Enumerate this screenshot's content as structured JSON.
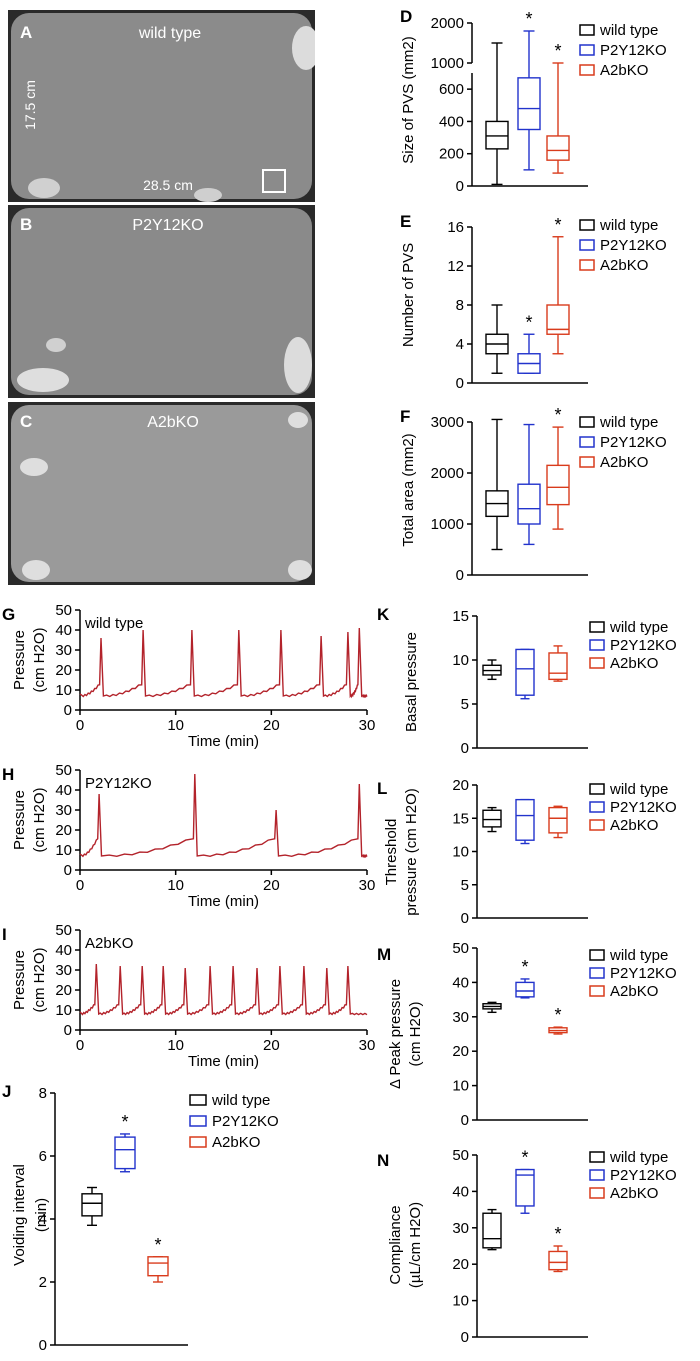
{
  "colors": {
    "wild_type": "#000000",
    "p2y12ko": "#2233cc",
    "a2bko": "#d93b1c",
    "trace": "#b3232b",
    "paper_bg": "#2a2a2a"
  },
  "photos": [
    {
      "panel": "A",
      "label": "wild type",
      "dim_h": "17.5 cm",
      "dim_w": "28.5 cm"
    },
    {
      "panel": "B",
      "label": "P2Y12KO"
    },
    {
      "panel": "C",
      "label": "A2bKO"
    }
  ],
  "legend": [
    "wild type",
    "P2Y12KO",
    "A2bKO"
  ],
  "chart_data": [
    {
      "panel": "D",
      "type": "box",
      "ylabel": "Size of PVS (mm2)",
      "broken_axis": true,
      "y_ticks": [
        "0",
        "200",
        "400",
        "600",
        "1000",
        "2000"
      ],
      "groups": [
        {
          "name": "wild type",
          "min": 10,
          "q1": 230,
          "median": 310,
          "q3": 400,
          "max": 1500,
          "sig": false
        },
        {
          "name": "P2Y12KO",
          "min": 100,
          "q1": 350,
          "median": 480,
          "q3": 670,
          "max": 1800,
          "sig": true
        },
        {
          "name": "A2bKO",
          "min": 80,
          "q1": 160,
          "median": 220,
          "q3": 310,
          "max": 1000,
          "sig": true
        }
      ]
    },
    {
      "panel": "E",
      "type": "box",
      "ylabel": "Number of PVS",
      "ylim": [
        0,
        16
      ],
      "y_ticks": [
        "0",
        "4",
        "8",
        "12",
        "16"
      ],
      "groups": [
        {
          "name": "wild type",
          "min": 1,
          "q1": 3,
          "median": 4,
          "q3": 5,
          "max": 8,
          "sig": false
        },
        {
          "name": "P2Y12KO",
          "min": 1,
          "q1": 1,
          "median": 2,
          "q3": 3,
          "max": 5,
          "sig": true
        },
        {
          "name": "A2bKO",
          "min": 3,
          "q1": 5,
          "median": 5.5,
          "q3": 8,
          "max": 15,
          "sig": true
        }
      ]
    },
    {
      "panel": "F",
      "type": "box",
      "ylabel": "Total area (mm2)",
      "ylim": [
        0,
        3000
      ],
      "y_ticks": [
        "0",
        "1000",
        "2000",
        "3000"
      ],
      "groups": [
        {
          "name": "wild type",
          "min": 500,
          "q1": 1150,
          "median": 1400,
          "q3": 1650,
          "max": 3050,
          "sig": false
        },
        {
          "name": "P2Y12KO",
          "min": 600,
          "q1": 1000,
          "median": 1300,
          "q3": 1780,
          "max": 2950,
          "sig": false
        },
        {
          "name": "A2bKO",
          "min": 900,
          "q1": 1380,
          "median": 1720,
          "q3": 2150,
          "max": 2900,
          "sig": true
        }
      ]
    },
    {
      "panel": "G",
      "type": "line",
      "label": "wild type",
      "xlabel": "Time (min)",
      "ylabel": "Pressure (cm H2O)",
      "xlim": [
        0,
        30
      ],
      "ylim": [
        0,
        50
      ],
      "x_ticks": [
        "0",
        "10",
        "20",
        "30"
      ],
      "y_ticks": [
        "0",
        "10",
        "20",
        "30",
        "40",
        "50"
      ],
      "baseline": 7,
      "pre_peak": 13,
      "peak_times": [
        2.2,
        6.6,
        11.7,
        16.6,
        21.0,
        25.2,
        28.0,
        29.2
      ],
      "peak_values": [
        36,
        40,
        40,
        40,
        40,
        37,
        39,
        41
      ]
    },
    {
      "panel": "H",
      "type": "line",
      "label": "P2Y12KO",
      "xlabel": "Time (min)",
      "ylabel": "Pressure (cm H2O)",
      "xlim": [
        0,
        30
      ],
      "ylim": [
        0,
        50
      ],
      "x_ticks": [
        "0",
        "10",
        "20",
        "30"
      ],
      "y_ticks": [
        "0",
        "10",
        "20",
        "30",
        "40",
        "50"
      ],
      "baseline": 7,
      "pre_peak": 16,
      "peak_times": [
        2.0,
        12.0,
        20.5,
        29.2
      ],
      "peak_values": [
        38,
        48,
        30,
        43
      ]
    },
    {
      "panel": "I",
      "type": "line",
      "label": "A2bKO",
      "xlabel": "Time (min)",
      "ylabel": "Pressure (cm H2O)",
      "xlim": [
        0,
        30
      ],
      "ylim": [
        0,
        50
      ],
      "x_ticks": [
        "0",
        "10",
        "20",
        "30"
      ],
      "y_ticks": [
        "0",
        "10",
        "20",
        "30",
        "40",
        "50"
      ],
      "baseline": 8,
      "pre_peak": 13,
      "peak_times": [
        1.7,
        4.2,
        6.5,
        8.7,
        11.0,
        13.6,
        16.0,
        18.5,
        20.9,
        23.4,
        25.8,
        28.0
      ],
      "peak_values": [
        33,
        32,
        32,
        32,
        31,
        32,
        32,
        31,
        32,
        32,
        31,
        32
      ]
    },
    {
      "panel": "J",
      "type": "box",
      "ylabel": "Voiding interval (min)",
      "ylim": [
        0,
        8
      ],
      "y_ticks": [
        "0",
        "2",
        "4",
        "6",
        "8"
      ],
      "groups": [
        {
          "name": "wild type",
          "min": 3.8,
          "q1": 4.1,
          "median": 4.5,
          "q3": 4.8,
          "max": 5.0,
          "sig": false
        },
        {
          "name": "P2Y12KO",
          "min": 5.5,
          "q1": 5.6,
          "median": 6.2,
          "q3": 6.6,
          "max": 6.7,
          "sig": true
        },
        {
          "name": "A2bKO",
          "min": 2.0,
          "q1": 2.2,
          "median": 2.6,
          "q3": 2.8,
          "max": 2.8,
          "sig": true
        }
      ]
    },
    {
      "panel": "K",
      "type": "box",
      "ylabel": "Basal pressure",
      "ylim": [
        0,
        15
      ],
      "y_ticks": [
        "0",
        "5",
        "10",
        "15"
      ],
      "groups": [
        {
          "name": "wild type",
          "min": 7.8,
          "q1": 8.3,
          "median": 8.8,
          "q3": 9.4,
          "max": 10.0,
          "sig": false
        },
        {
          "name": "P2Y12KO",
          "min": 5.6,
          "q1": 6.0,
          "median": 9.0,
          "q3": 11.2,
          "max": 11.2,
          "sig": false
        },
        {
          "name": "A2bKO",
          "min": 7.6,
          "q1": 7.8,
          "median": 8.5,
          "q3": 10.8,
          "max": 11.6,
          "sig": false
        }
      ]
    },
    {
      "panel": "L",
      "type": "box",
      "ylabel": "Threshold pressure (cm H2O)",
      "ylim": [
        0,
        20
      ],
      "y_ticks": [
        "0",
        "5",
        "10",
        "15",
        "20"
      ],
      "groups": [
        {
          "name": "wild type",
          "min": 13.0,
          "q1": 13.7,
          "median": 14.8,
          "q3": 16.2,
          "max": 16.6,
          "sig": false
        },
        {
          "name": "P2Y12KO",
          "min": 11.2,
          "q1": 11.7,
          "median": 15.4,
          "q3": 17.8,
          "max": 17.8,
          "sig": false
        },
        {
          "name": "A2bKO",
          "min": 12.1,
          "q1": 12.8,
          "median": 15.0,
          "q3": 16.6,
          "max": 16.8,
          "sig": false
        }
      ]
    },
    {
      "panel": "M",
      "type": "box",
      "ylabel": "Δ Peak pressure (cm H2O)",
      "ylim": [
        0,
        50
      ],
      "y_ticks": [
        "0",
        "10",
        "20",
        "30",
        "40",
        "50"
      ],
      "groups": [
        {
          "name": "wild type",
          "min": 31.3,
          "q1": 32.3,
          "median": 33.0,
          "q3": 33.8,
          "max": 34.2,
          "sig": false
        },
        {
          "name": "P2Y12KO",
          "min": 35.5,
          "q1": 35.8,
          "median": 37.5,
          "q3": 40.0,
          "max": 41.0,
          "sig": true
        },
        {
          "name": "A2bKO",
          "min": 25.0,
          "q1": 25.4,
          "median": 26.0,
          "q3": 26.8,
          "max": 27.0,
          "sig": true
        }
      ]
    },
    {
      "panel": "N",
      "type": "box",
      "ylabel": "Compliance (µL/cm H2O)",
      "ylim": [
        0,
        50
      ],
      "y_ticks": [
        "0",
        "10",
        "20",
        "30",
        "40",
        "50"
      ],
      "groups": [
        {
          "name": "wild type",
          "min": 24.0,
          "q1": 24.5,
          "median": 27.0,
          "q3": 34.0,
          "max": 35.0,
          "sig": false
        },
        {
          "name": "P2Y12KO",
          "min": 34.0,
          "q1": 36.0,
          "median": 44.5,
          "q3": 46.0,
          "max": 46.0,
          "sig": true
        },
        {
          "name": "A2bKO",
          "min": 18.0,
          "q1": 18.5,
          "median": 20.5,
          "q3": 23.5,
          "max": 25.0,
          "sig": true
        }
      ]
    }
  ]
}
